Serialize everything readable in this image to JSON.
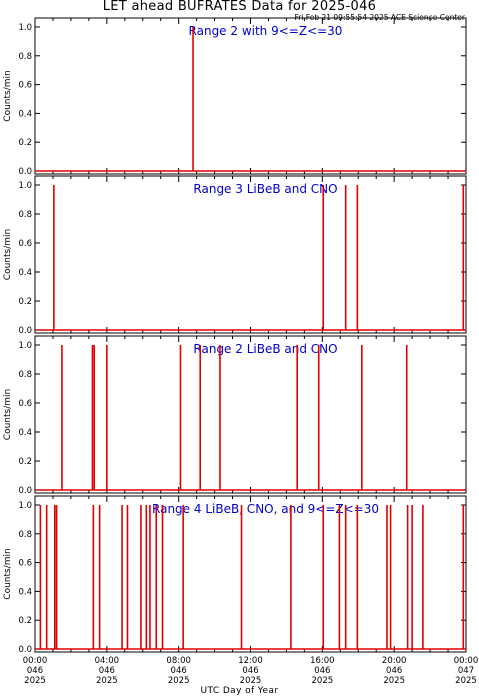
{
  "header": {
    "title": "LET ahead BUFRATES Data for 2025-046",
    "timestamp": "Fri Feb 21 09:55:54 2025 ACE Science Center"
  },
  "colors": {
    "series": "#dd0000",
    "panel_label": "#0000cc",
    "axis": "#000000"
  },
  "chart_data": {
    "type": "line",
    "xlabel": "UTC Day of Year",
    "xlim_hours": [
      0,
      24
    ],
    "x_ticks": [
      {
        "hour": 0,
        "time": "00:00",
        "doy": "046",
        "year": "2025"
      },
      {
        "hour": 4,
        "time": "04:00",
        "doy": "046",
        "year": "2025"
      },
      {
        "hour": 8,
        "time": "08:00",
        "doy": "046",
        "year": "2025"
      },
      {
        "hour": 12,
        "time": "12:00",
        "doy": "046",
        "year": "2025"
      },
      {
        "hour": 16,
        "time": "16:00",
        "doy": "046",
        "year": "2025"
      },
      {
        "hour": 20,
        "time": "20:00",
        "doy": "046",
        "year": "2025"
      },
      {
        "hour": 24,
        "time": "00:00",
        "doy": "047",
        "year": "2025"
      }
    ],
    "panels": [
      {
        "label": "Range 2 with 9<=Z<=30",
        "ylabel": "Counts/min",
        "ylim": [
          0,
          1
        ],
        "y_ticks": [
          "0.0",
          "0.2",
          "0.4",
          "0.6",
          "0.8",
          "1.0"
        ],
        "spikes_hours": [
          8.8
        ],
        "spike_value": 1.0
      },
      {
        "label": "Range 3 LiBeB and CNO",
        "ylabel": "Counts/min",
        "ylim": [
          0,
          1
        ],
        "y_ticks": [
          "0.0",
          "0.2",
          "0.4",
          "0.6",
          "0.8",
          "1.0"
        ],
        "spikes_hours": [
          1.05,
          16.05,
          17.3,
          17.95,
          23.85
        ],
        "spike_value": 1.0
      },
      {
        "label": "Range 2 LiBeB and CNO",
        "ylabel": "Counts/min",
        "ylim": [
          0,
          1
        ],
        "y_ticks": [
          "0.0",
          "0.2",
          "0.4",
          "0.6",
          "0.8",
          "1.0"
        ],
        "spikes_hours": [
          1.5,
          3.2,
          3.3,
          4.0,
          8.1,
          9.2,
          10.3,
          14.6,
          15.8,
          18.2,
          20.7
        ],
        "spike_value": 1.0
      },
      {
        "label": "Range 4 LiBeB, CNO, and 9<=Z<=30",
        "ylabel": "Counts/min",
        "ylim": [
          0,
          1
        ],
        "y_ticks": [
          "0.0",
          "0.2",
          "0.4",
          "0.6",
          "0.8",
          "1.0"
        ],
        "spikes_hours": [
          0.3,
          0.65,
          1.1,
          1.2,
          3.25,
          3.6,
          4.85,
          5.15,
          5.9,
          6.2,
          6.4,
          6.75,
          7.1,
          8.25,
          11.5,
          14.25,
          16.05,
          16.95,
          17.3,
          17.95,
          19.6,
          19.8,
          20.75,
          21.0,
          21.6,
          23.85
        ],
        "spike_value": 1.0
      }
    ]
  }
}
